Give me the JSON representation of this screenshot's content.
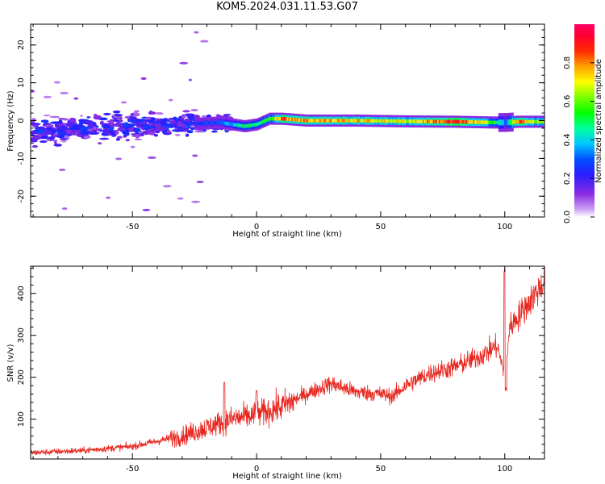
{
  "title": "KOM5.2024.031.11.53.G07",
  "chart_data": [
    {
      "type": "heatmap",
      "title": "KOM5.2024.031.11.53.G07",
      "xlabel": "Height of straight line (km)",
      "ylabel": "Frequency (Hz)",
      "xlim": [
        -91,
        116
      ],
      "ylim": [
        -25.5,
        25.5
      ],
      "x_ticks": [
        "-50",
        "0",
        "50",
        "100"
      ],
      "y_ticks": [
        "-20",
        "-10",
        "0",
        "10",
        "20"
      ],
      "colorbar": {
        "label": "Normalized spectral amplitude",
        "range": [
          0,
          1
        ],
        "ticks": [
          "0.0",
          "0.2",
          "0.4",
          "0.6",
          "0.8"
        ]
      },
      "ridge": {
        "description_points_x": [
          -90,
          -70,
          -50,
          -30,
          -15,
          -5,
          0,
          5,
          10,
          20,
          40,
          60,
          80,
          95,
          100,
          105,
          116
        ],
        "description_points_y": [
          -3,
          -2,
          -1.5,
          -1,
          -0.5,
          -1.5,
          -1,
          0.5,
          0.5,
          0,
          0,
          -0.2,
          -0.3,
          -0.5,
          -0.5,
          -0.3,
          -0.3
        ],
        "peak_amplitude": [
          0.1,
          0.15,
          0.2,
          0.25,
          0.3,
          0.5,
          0.45,
          0.6,
          0.85,
          0.8,
          0.75,
          0.7,
          0.9,
          0.6,
          0.3,
          0.85,
          0.6
        ]
      }
    },
    {
      "type": "line",
      "xlabel": "Height of straight line (km)",
      "ylabel": "SNR (v/v)",
      "xlim": [
        -91,
        116
      ],
      "ylim": [
        5,
        465
      ],
      "x_ticks": [
        "-50",
        "0",
        "50",
        "100"
      ],
      "y_ticks": [
        "100",
        "200",
        "300",
        "400"
      ],
      "color": "#e8251e",
      "trend": {
        "x": [
          -91,
          -70,
          -50,
          -30,
          -20,
          -10,
          0,
          10,
          20,
          30,
          40,
          50,
          55,
          60,
          70,
          80,
          90,
          97,
          100,
          102,
          110,
          116
        ],
        "y": [
          20,
          25,
          35,
          60,
          80,
          100,
          110,
          130,
          160,
          185,
          165,
          160,
          155,
          180,
          210,
          225,
          250,
          275,
          200,
          320,
          380,
          430
        ]
      },
      "spikes": [
        {
          "x": -13,
          "y": 190
        },
        {
          "x": 0,
          "y": 170
        },
        {
          "x": 100,
          "y": 460
        },
        {
          "x": 100.5,
          "y": 175
        }
      ]
    }
  ]
}
